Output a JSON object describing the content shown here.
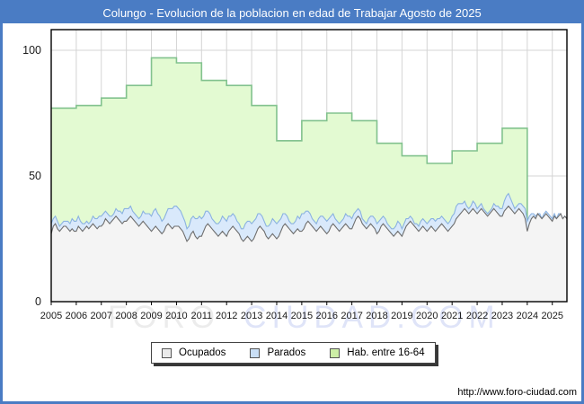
{
  "title": "Colungo - Evolucion de la poblacion en edad de Trabajar Agosto de 2025",
  "watermark": {
    "foro": "FORO",
    "ciudad": "CIUDAD.COM"
  },
  "footer": {
    "url": "http://www.foro-ciudad.com"
  },
  "colors": {
    "frame_blue": "#4a7cc4",
    "title_text": "#ffffff",
    "plot_border": "#000000",
    "gridline": "#d4d4d4",
    "ocupados_line": "#6e6e6e",
    "ocupados_fill": "#f4f4f4",
    "parados_line": "#8ab2e0",
    "parados_fill": "#d9e9fb",
    "hab_line": "#82c28e",
    "hab_fill": "#e3fad2",
    "watermark_gray": "#ececec",
    "watermark_blue": "#dfe4f8",
    "axis_text": "#1a1a1a"
  },
  "legend": {
    "items": [
      {
        "label": "Ocupados",
        "swatch": "#ebebeb",
        "swatch_border": "#555555"
      },
      {
        "label": "Parados",
        "swatch": "#c9def5",
        "swatch_border": "#555555"
      },
      {
        "label": "Hab. entre 16-64",
        "swatch": "#cdeea6",
        "swatch_border": "#555555"
      }
    ]
  },
  "chart_data": {
    "type": "area",
    "title": "Colungo - Evolucion de la poblacion en edad de Trabajar Agosto de 2025",
    "frequency": "monthly",
    "period": {
      "start": "2005-01",
      "end": "2025-08"
    },
    "x_axis": {
      "labels": [
        "2005",
        "2006",
        "2007",
        "2008",
        "2009",
        "2010",
        "2011",
        "2012",
        "2013",
        "2014",
        "2015",
        "2016",
        "2017",
        "2018",
        "2019",
        "2020",
        "2021",
        "2022",
        "2023",
        "2024",
        "2025"
      ]
    },
    "y_axis": {
      "ticks": [
        0,
        50,
        100
      ],
      "max": 107
    },
    "legend_position": "bottom-center",
    "grid": true,
    "series": [
      {
        "name": "Ocupados",
        "style": "monthly-line-with-area",
        "values": [
          27,
          30,
          31,
          29,
          28,
          29,
          30,
          30,
          29,
          28,
          29,
          28,
          28,
          30,
          29,
          28,
          29,
          30,
          29,
          30,
          31,
          30,
          29,
          30,
          30,
          31,
          33,
          32,
          31,
          32,
          33,
          34,
          33,
          32,
          31,
          32,
          32,
          33,
          34,
          33,
          32,
          31,
          30,
          31,
          32,
          31,
          30,
          29,
          28,
          29,
          30,
          29,
          28,
          27,
          28,
          30,
          31,
          30,
          29,
          30,
          30,
          30,
          29,
          28,
          26,
          24,
          25,
          27,
          28,
          26,
          25,
          26,
          26,
          28,
          30,
          31,
          30,
          29,
          28,
          27,
          26,
          27,
          28,
          27,
          26,
          28,
          29,
          30,
          29,
          28,
          27,
          25,
          24,
          25,
          26,
          25,
          24,
          25,
          27,
          29,
          30,
          29,
          28,
          26,
          25,
          26,
          27,
          26,
          25,
          26,
          28,
          30,
          31,
          30,
          29,
          28,
          27,
          28,
          29,
          28,
          28,
          29,
          31,
          32,
          31,
          30,
          29,
          28,
          29,
          30,
          29,
          28,
          27,
          28,
          30,
          31,
          30,
          29,
          28,
          29,
          30,
          31,
          30,
          29,
          29,
          31,
          33,
          34,
          33,
          31,
          30,
          29,
          30,
          31,
          30,
          29,
          27,
          28,
          30,
          31,
          30,
          29,
          28,
          27,
          26,
          27,
          28,
          27,
          26,
          28,
          30,
          31,
          32,
          31,
          30,
          29,
          28,
          29,
          30,
          29,
          28,
          29,
          30,
          29,
          28,
          29,
          30,
          31,
          30,
          29,
          28,
          29,
          30,
          31,
          33,
          34,
          35,
          36,
          37,
          36,
          35,
          36,
          37,
          36,
          35,
          36,
          37,
          36,
          35,
          34,
          35,
          36,
          37,
          36,
          35,
          34,
          34,
          36,
          37,
          38,
          37,
          36,
          35,
          36,
          37,
          36,
          35,
          33,
          28,
          31,
          33,
          34,
          33,
          35,
          34,
          33,
          34,
          35,
          34,
          33,
          32,
          34,
          33,
          34,
          35,
          33,
          34,
          33
        ]
      },
      {
        "name": "Parados",
        "style": "stacked-band-above-ocupados",
        "values": [
          4,
          3,
          3,
          3,
          2,
          2,
          2,
          2,
          3,
          3,
          4,
          4,
          4,
          4,
          3,
          3,
          2,
          2,
          2,
          2,
          3,
          3,
          4,
          4,
          4,
          4,
          3,
          3,
          3,
          2,
          2,
          3,
          3,
          4,
          4,
          5,
          5,
          4,
          4,
          3,
          3,
          3,
          3,
          3,
          4,
          4,
          5,
          6,
          6,
          7,
          7,
          6,
          6,
          5,
          5,
          5,
          6,
          7,
          8,
          8,
          8,
          7,
          7,
          6,
          6,
          5,
          5,
          6,
          6,
          7,
          8,
          8,
          7,
          6,
          6,
          5,
          5,
          4,
          4,
          4,
          5,
          5,
          6,
          6,
          6,
          6,
          5,
          5,
          5,
          4,
          4,
          4,
          5,
          6,
          6,
          7,
          7,
          7,
          6,
          6,
          5,
          5,
          4,
          4,
          5,
          5,
          6,
          6,
          6,
          6,
          5,
          5,
          4,
          4,
          3,
          3,
          4,
          4,
          5,
          5,
          7,
          6,
          5,
          4,
          4,
          3,
          3,
          3,
          4,
          4,
          5,
          5,
          5,
          5,
          4,
          4,
          3,
          3,
          3,
          3,
          3,
          4,
          4,
          5,
          4,
          4,
          3,
          3,
          3,
          2,
          2,
          2,
          3,
          3,
          4,
          4,
          4,
          4,
          3,
          3,
          3,
          2,
          2,
          2,
          3,
          3,
          4,
          4,
          3,
          3,
          3,
          2,
          2,
          2,
          1,
          2,
          2,
          3,
          3,
          3,
          3,
          3,
          3,
          4,
          4,
          4,
          3,
          3,
          3,
          3,
          3,
          3,
          4,
          4,
          5,
          5,
          4,
          3,
          3,
          2,
          2,
          2,
          3,
          3,
          2,
          2,
          2,
          1,
          1,
          1,
          1,
          1,
          2,
          2,
          3,
          3,
          3,
          4,
          5,
          5,
          4,
          3,
          2,
          2,
          2,
          3,
          3,
          4,
          4,
          3,
          2,
          1,
          1,
          0,
          1,
          0,
          1,
          1,
          1,
          1,
          1,
          1,
          0,
          1,
          0,
          0,
          0,
          0
        ]
      },
      {
        "name": "Hab. entre 16-64",
        "style": "yearly-steps",
        "years": [
          "2005",
          "2006",
          "2007",
          "2008",
          "2009",
          "2010",
          "2011",
          "2012",
          "2013",
          "2014",
          "2015",
          "2016",
          "2017",
          "2018",
          "2019",
          "2020",
          "2021",
          "2022",
          "2023"
        ],
        "values": [
          77,
          78,
          81,
          86,
          97,
          95,
          88,
          86,
          78,
          64,
          72,
          75,
          72,
          63,
          58,
          55,
          60,
          63,
          69
        ]
      }
    ]
  }
}
